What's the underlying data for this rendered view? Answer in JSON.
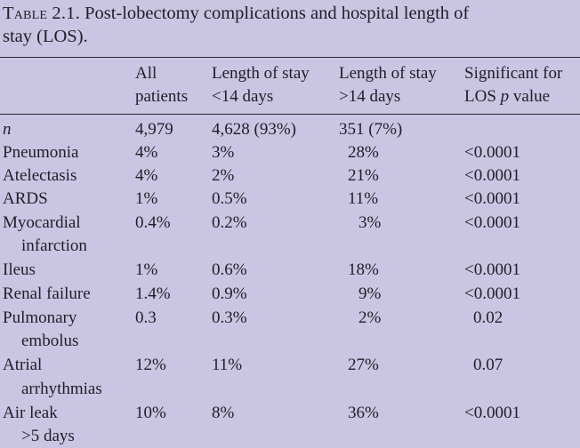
{
  "caption": {
    "prefix": "Table 2.1.",
    "text_line1": " Post-lobectomy complications and hospital length of",
    "text_line2": "stay (LOS)."
  },
  "table": {
    "headers": {
      "all": [
        "All",
        "patients"
      ],
      "lt14": [
        "Length of stay",
        "<14 days"
      ],
      "gt14": [
        "Length of stay",
        ">14 days"
      ],
      "sig": [
        "Significant for",
        "LOS ",
        "p",
        " value"
      ]
    },
    "rows": [
      {
        "label": [
          "n"
        ],
        "all": "4,979",
        "lt14": "4,628 (93%)",
        "gt14": "351 (7%)",
        "sig": ""
      },
      {
        "label": [
          "Pneumonia"
        ],
        "all": "4%",
        "lt14": "3%",
        "gt14": "28%",
        "sig": "<0.0001"
      },
      {
        "label": [
          "Atelectasis"
        ],
        "all": "4%",
        "lt14": "2%",
        "gt14": "21%",
        "sig": "<0.0001"
      },
      {
        "label": [
          "ARDS"
        ],
        "all": "1%",
        "lt14": "0.5%",
        "gt14": "11%",
        "sig": "<0.0001"
      },
      {
        "label": [
          "Myocardial",
          "infarction"
        ],
        "all": "0.4%",
        "lt14": "0.2%",
        "gt14": "3%",
        "sig": "<0.0001"
      },
      {
        "label": [
          "Ileus"
        ],
        "all": "1%",
        "lt14": "0.6%",
        "gt14": "18%",
        "sig": "<0.0001"
      },
      {
        "label": [
          "Renal failure"
        ],
        "all": "1.4%",
        "lt14": "0.9%",
        "gt14": "9%",
        "sig": "<0.0001"
      },
      {
        "label": [
          "Pulmonary",
          "embolus"
        ],
        "all": "0.3",
        "lt14": "0.3%",
        "gt14": "2%",
        "sig": "0.02"
      },
      {
        "label": [
          "Atrial",
          "arrhythmias"
        ],
        "all": "12%",
        "lt14": "11%",
        "gt14": "27%",
        "sig": "0.07"
      },
      {
        "label": [
          "Air leak",
          ">5 days"
        ],
        "all": "10%",
        "lt14": "8%",
        "gt14": "36%",
        "sig": "<0.0001"
      }
    ]
  }
}
